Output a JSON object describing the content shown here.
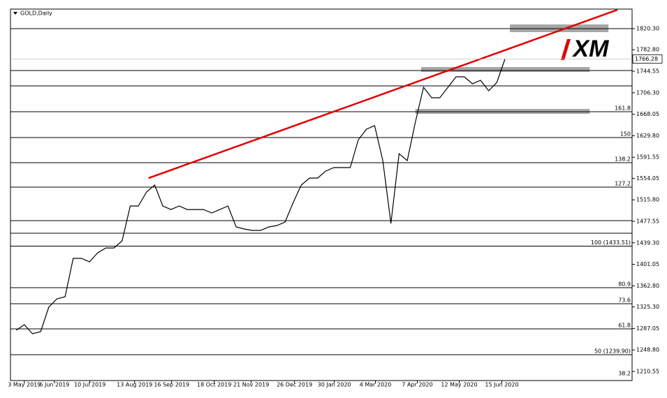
{
  "chart_data": {
    "type": "line",
    "title": "GOLD,Daily",
    "logo": "XM",
    "series": [
      {
        "name": "GOLD",
        "color": "#000000",
        "x": [
          -1,
          0,
          1,
          2,
          3,
          4,
          5,
          6,
          7,
          8,
          9,
          10,
          11,
          12,
          13,
          14,
          15,
          16,
          17,
          18,
          19,
          20,
          21,
          22,
          23,
          24,
          25,
          26,
          27,
          28,
          29,
          30,
          31,
          32,
          33,
          34,
          35,
          36,
          37,
          38,
          39,
          40,
          41,
          42,
          43,
          44,
          45,
          46,
          47,
          48,
          49,
          50,
          51,
          52,
          53,
          54,
          55,
          56,
          57,
          58,
          59
        ],
        "values": [
          1283.8,
          1293.7,
          1277.6,
          1281.3,
          1324.8,
          1339.7,
          1343.4,
          1411.7,
          1411.7,
          1405.5,
          1421.6,
          1430.3,
          1430.3,
          1442.8,
          1504.9,
          1504.9,
          1529.7,
          1542.1,
          1504.9,
          1498.6,
          1504.9,
          1498.6,
          1498.6,
          1498.6,
          1492.4,
          1498.6,
          1504.9,
          1467.6,
          1463.9,
          1461.4,
          1461.4,
          1467.6,
          1470.1,
          1476.3,
          1511.1,
          1542.1,
          1554.5,
          1554.5,
          1567.0,
          1573.2,
          1573.2,
          1573.2,
          1622.8,
          1641.5,
          1647.7,
          1585.6,
          1473.8,
          1598.0,
          1585.6,
          1653.9,
          1716.0,
          1697.4,
          1697.4,
          1716.0,
          1734.6,
          1734.6,
          1722.2,
          1728.4,
          1709.8,
          1724.7,
          1766.28
        ]
      }
    ],
    "last_price": 1766.28,
    "xlim": [
      -1.7,
      74.6
    ],
    "ylim": [
      1194.4,
      1855.1
    ],
    "xticks": [
      {
        "value": 0,
        "label": "3 May 2019"
      },
      {
        "value": 3.69,
        "label": "6 Jun 2019"
      },
      {
        "value": 8.05,
        "label": "10 Jul 2019"
      },
      {
        "value": 13.54,
        "label": "13 Aug 2019"
      },
      {
        "value": 18.08,
        "label": "16 Sep 2019"
      },
      {
        "value": 23.31,
        "label": "18 Oct 2019"
      },
      {
        "value": 27.85,
        "label": "21 Nov 2019"
      },
      {
        "value": 33.16,
        "label": "26 Dec 2019"
      },
      {
        "value": 38.05,
        "label": "30 Jan 2020"
      },
      {
        "value": 43.1,
        "label": "4 Mar 2020"
      },
      {
        "value": 48.24,
        "label": "7 Apr 2020"
      },
      {
        "value": 53.38,
        "label": "12 May 2020"
      },
      {
        "value": 58.61,
        "label": "15 Jun 2020"
      }
    ],
    "yticks": [
      {
        "value": 1820.3,
        "label": "1820.30"
      },
      {
        "value": 1782.8,
        "label": "1782.80"
      },
      {
        "value": 1744.55,
        "label": "1744.55"
      },
      {
        "value": 1706.3,
        "label": "1706.30"
      },
      {
        "value": 1668.05,
        "label": "1668.05"
      },
      {
        "value": 1629.8,
        "label": "1629.80"
      },
      {
        "value": 1591.55,
        "label": "1591.55"
      },
      {
        "value": 1554.05,
        "label": "1554.05"
      },
      {
        "value": 1515.8,
        "label": "1515.80"
      },
      {
        "value": 1477.55,
        "label": "1477.55"
      },
      {
        "value": 1439.3,
        "label": "1439.30"
      },
      {
        "value": 1401.05,
        "label": "1401.05"
      },
      {
        "value": 1362.8,
        "label": "1362.80"
      },
      {
        "value": 1325.3,
        "label": "1325.30"
      },
      {
        "value": 1287.05,
        "label": "1287.05"
      },
      {
        "value": 1248.8,
        "label": "1248.80"
      },
      {
        "value": 1210.55,
        "label": "1210.55"
      }
    ],
    "levels": [
      1820.3,
      1745.8,
      1718.5,
      1672.5,
      1626.6,
      1581.9,
      1538.4,
      1478.8,
      1456.4,
      1433.5,
      1359.5,
      1331.0,
      1286.3,
      1240.3
    ],
    "fib_labels": [
      {
        "value": 1672.5,
        "label": "161.8"
      },
      {
        "value": 1626.6,
        "label": "150"
      },
      {
        "value": 1581.9,
        "label": "138.2"
      },
      {
        "value": 1538.4,
        "label": "127.2"
      },
      {
        "value": 1433.5,
        "label": "100  (1433.51)"
      },
      {
        "value": 1359.5,
        "label": "80.9"
      },
      {
        "value": 1331.0,
        "label": "73.6"
      },
      {
        "value": 1286.3,
        "label": "61.8"
      },
      {
        "value": 1240.3,
        "label": "50  (1239.90)"
      },
      {
        "value": 1200.6,
        "label": "38.2"
      }
    ],
    "trendline": {
      "color": "#e00000",
      "x": [
        15.25,
        72.8
      ],
      "y": [
        1554.5,
        1853.8
      ]
    },
    "zones": [
      {
        "color": "#a6a6a6",
        "x": [
          59.6,
          71.7
        ],
        "y": [
          1814.1,
          1827.8
        ]
      },
      {
        "color": "#a6a6a6",
        "x": [
          48.7,
          69.4
        ],
        "y": [
          1743.3,
          1752.0
        ]
      },
      {
        "color": "#a6a6a6",
        "x": [
          48.0,
          69.4
        ],
        "y": [
          1668.8,
          1677.5
        ]
      }
    ]
  }
}
